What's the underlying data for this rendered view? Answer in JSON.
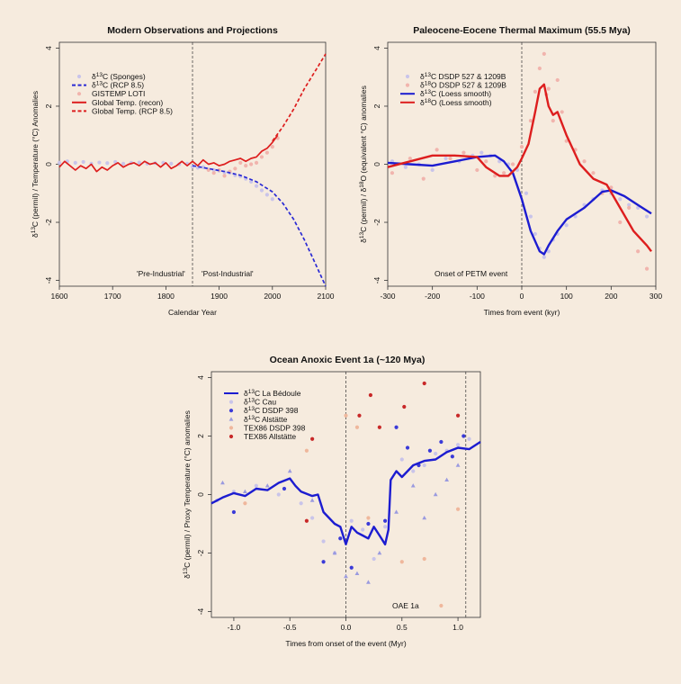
{
  "chart_data": [
    {
      "type": "line",
      "title": "Modern Observations and Projections",
      "xlabel": "Calendar Year",
      "ylabel": "δ13C (permil) / Temperature (°C) Anomalies",
      "xlim": [
        1600,
        2100
      ],
      "ylim": [
        -4.2,
        4.2
      ],
      "xticks": [
        1600,
        1700,
        1800,
        1900,
        2000,
        2100
      ],
      "yticks": [
        -4,
        -2,
        0,
        2,
        4
      ],
      "vline": 1850,
      "annotations": [
        "'Pre-Industrial'",
        "'Post-Industrial'"
      ],
      "legend": [
        "δ13C (Sponges)",
        "δ13C (RCP 8.5)",
        "GISTEMP LOTI",
        "Global Temp. (recon)",
        "Global Temp. (RCP 8.5)"
      ],
      "series": [
        {
          "name": "δ13C (Sponges)",
          "style": "points",
          "color": "#c9c4ea",
          "x": [
            1600,
            1615,
            1630,
            1645,
            1660,
            1675,
            1690,
            1705,
            1720,
            1735,
            1750,
            1765,
            1780,
            1795,
            1810,
            1825,
            1840,
            1850,
            1860,
            1870,
            1880,
            1890,
            1900,
            1910,
            1920,
            1930,
            1940,
            1950,
            1960,
            1970,
            1980,
            1990,
            2000
          ],
          "y": [
            0.05,
            0.1,
            0.05,
            0.08,
            0.02,
            0.06,
            0.04,
            0.08,
            0.02,
            0.05,
            0.06,
            0.02,
            0.04,
            0.05,
            0.02,
            0.0,
            0.02,
            -0.08,
            -0.12,
            -0.1,
            -0.18,
            -0.2,
            -0.22,
            -0.28,
            -0.3,
            -0.38,
            -0.42,
            -0.5,
            -0.6,
            -0.75,
            -0.9,
            -1.05,
            -1.2
          ]
        },
        {
          "name": "δ13C (RCP 8.5)",
          "style": "dashed",
          "color": "#2a2ad4",
          "x": [
            1850,
            1880,
            1910,
            1940,
            1970,
            2000,
            2020,
            2040,
            2060,
            2080,
            2100
          ],
          "y": [
            -0.05,
            -0.15,
            -0.25,
            -0.38,
            -0.6,
            -0.95,
            -1.35,
            -1.9,
            -2.6,
            -3.4,
            -4.2
          ]
        },
        {
          "name": "GISTEMP LOTI",
          "style": "points",
          "color": "#f1b4ad",
          "x": [
            1880,
            1890,
            1900,
            1910,
            1920,
            1930,
            1940,
            1950,
            1960,
            1970,
            1980,
            1990,
            2000,
            2010
          ],
          "y": [
            -0.2,
            -0.3,
            -0.2,
            -0.4,
            -0.25,
            -0.15,
            0.05,
            -0.05,
            0.0,
            0.05,
            0.25,
            0.4,
            0.6,
            0.9
          ]
        },
        {
          "name": "Global Temp. (recon)",
          "style": "solid",
          "color": "#dd1e1e",
          "x": [
            1600,
            1610,
            1620,
            1630,
            1640,
            1650,
            1660,
            1670,
            1680,
            1690,
            1700,
            1710,
            1720,
            1730,
            1740,
            1750,
            1760,
            1770,
            1780,
            1790,
            1800,
            1810,
            1820,
            1830,
            1840,
            1850,
            1860,
            1870,
            1880,
            1890,
            1900,
            1910,
            1920,
            1930,
            1940,
            1950,
            1960,
            1970,
            1980,
            1990,
            2000,
            2010
          ],
          "y": [
            -0.1,
            0.1,
            -0.05,
            -0.2,
            -0.05,
            -0.15,
            0.0,
            -0.25,
            -0.1,
            -0.2,
            -0.05,
            0.05,
            -0.1,
            0.0,
            0.05,
            -0.05,
            0.1,
            0.0,
            0.05,
            -0.1,
            0.05,
            -0.15,
            -0.05,
            0.1,
            -0.05,
            0.1,
            -0.05,
            0.15,
            0.0,
            0.05,
            -0.05,
            0.0,
            0.1,
            0.15,
            0.2,
            0.1,
            0.2,
            0.25,
            0.45,
            0.55,
            0.75,
            1.0
          ]
        },
        {
          "name": "Global Temp. (RCP 8.5)",
          "style": "dashed",
          "color": "#dd1e1e",
          "x": [
            2000,
            2020,
            2040,
            2060,
            2080,
            2100
          ],
          "y": [
            0.8,
            1.3,
            1.9,
            2.6,
            3.2,
            3.8
          ]
        }
      ]
    },
    {
      "type": "line",
      "title": "Paleocene-Eocene Thermal Maximum (55.5 Mya)",
      "xlabel": "Times from event (kyr)",
      "ylabel": "δ13C (permil) / δ18O (equivalent °C) anomalies",
      "xlim": [
        -300,
        300
      ],
      "ylim": [
        -4.2,
        4.2
      ],
      "xticks": [
        -300,
        -200,
        -100,
        0,
        100,
        200,
        300
      ],
      "yticks": [
        -4,
        -2,
        0,
        2,
        4
      ],
      "vline": 0,
      "annotations": [
        "Onset of PETM event"
      ],
      "legend": [
        "δ13C DSDP 527 & 1209B",
        "δ18O DSDP 527 & 1209B",
        "δ13C (Loess smooth)",
        "δ18O (Loess smooth)"
      ],
      "series": [
        {
          "name": "δ13C DSDP 527 & 1209B",
          "style": "points",
          "color": "#c9c4ea",
          "x": [
            -290,
            -260,
            -230,
            -200,
            -170,
            -140,
            -110,
            -90,
            -70,
            -50,
            -30,
            -10,
            10,
            20,
            30,
            40,
            50,
            60,
            70,
            80,
            100,
            120,
            140,
            160,
            180,
            200,
            220,
            240,
            260,
            280
          ],
          "y": [
            0.1,
            -0.1,
            0.0,
            -0.2,
            0.2,
            0.1,
            0.3,
            0.4,
            0.3,
            0.1,
            0.0,
            -0.2,
            -1.0,
            -1.8,
            -2.4,
            -2.9,
            -3.2,
            -3.0,
            -2.6,
            -2.4,
            -2.1,
            -1.8,
            -1.4,
            -1.2,
            -0.9,
            -1.0,
            -1.2,
            -1.4,
            -1.5,
            -1.8
          ]
        },
        {
          "name": "δ18O DSDP 527 & 1209B",
          "style": "points",
          "color": "#f1b4ad",
          "x": [
            -290,
            -250,
            -220,
            -190,
            -160,
            -130,
            -100,
            -80,
            -60,
            -40,
            -20,
            0,
            20,
            30,
            40,
            50,
            55,
            60,
            70,
            80,
            90,
            100,
            120,
            140,
            160,
            180,
            200,
            220,
            240,
            260,
            280
          ],
          "y": [
            -0.3,
            0.2,
            -0.5,
            0.5,
            0.2,
            0.4,
            -0.2,
            0.1,
            -0.4,
            -0.3,
            0.0,
            0.6,
            1.5,
            2.5,
            3.3,
            3.8,
            2.4,
            2.6,
            1.5,
            2.9,
            1.8,
            0.8,
            0.5,
            0.1,
            -0.3,
            -1.0,
            -0.8,
            -2.0,
            -1.5,
            -3.0,
            -3.6
          ]
        },
        {
          "name": "δ13C (Loess smooth)",
          "style": "solid",
          "color": "#1c1cd0",
          "x": [
            -300,
            -250,
            -200,
            -150,
            -100,
            -60,
            -40,
            -20,
            0,
            20,
            40,
            50,
            60,
            80,
            100,
            140,
            180,
            200,
            230,
            260,
            290
          ],
          "y": [
            0.05,
            0.0,
            -0.05,
            0.1,
            0.25,
            0.3,
            0.1,
            -0.3,
            -1.2,
            -2.3,
            -3.0,
            -3.1,
            -2.8,
            -2.3,
            -1.9,
            -1.5,
            -0.95,
            -0.9,
            -1.1,
            -1.4,
            -1.7
          ]
        },
        {
          "name": "δ18O (Loess smooth)",
          "style": "solid",
          "color": "#dd1e1e",
          "x": [
            -300,
            -250,
            -200,
            -150,
            -100,
            -80,
            -50,
            -30,
            -10,
            0,
            15,
            30,
            40,
            50,
            60,
            70,
            80,
            100,
            130,
            160,
            190,
            220,
            250,
            280,
            290
          ],
          "y": [
            -0.1,
            0.1,
            0.3,
            0.3,
            0.25,
            -0.1,
            -0.4,
            -0.4,
            -0.1,
            0.2,
            0.7,
            1.8,
            2.6,
            2.75,
            2.0,
            1.7,
            1.8,
            1.0,
            0.0,
            -0.5,
            -0.7,
            -1.5,
            -2.3,
            -2.8,
            -3.0
          ]
        }
      ]
    },
    {
      "type": "line",
      "title": "Ocean Anoxic Event 1a (~120 Mya)",
      "xlabel": "Times from onset of the event (Myr)",
      "ylabel": "δ13C (permil) / Proxy Temperature (°C) anomalies",
      "xlim": [
        -1.2,
        1.2
      ],
      "ylim": [
        -4.2,
        4.2
      ],
      "xticks": [
        -1.0,
        -0.5,
        0.0,
        0.5,
        1.0
      ],
      "yticks": [
        -4,
        -2,
        0,
        2,
        4
      ],
      "vlines": [
        0.0,
        1.07
      ],
      "annotations": [
        "OAE 1a"
      ],
      "legend": [
        "δ13C La Bédoule",
        "δ13C Cau",
        "δ13C DSDP 398",
        "δ13C Alstätte",
        "TEX86 DSDP 398",
        "TEX86 Allstätte"
      ],
      "series": [
        {
          "name": "δ13C La Bédoule",
          "style": "solid",
          "color": "#1c1cd0",
          "x": [
            -1.2,
            -1.1,
            -1.0,
            -0.9,
            -0.8,
            -0.7,
            -0.6,
            -0.5,
            -0.45,
            -0.4,
            -0.3,
            -0.25,
            -0.2,
            -0.15,
            -0.1,
            -0.05,
            0.0,
            0.05,
            0.1,
            0.15,
            0.2,
            0.25,
            0.3,
            0.35,
            0.38,
            0.4,
            0.45,
            0.5,
            0.6,
            0.7,
            0.8,
            0.9,
            1.0,
            1.1,
            1.2
          ],
          "y": [
            -0.3,
            -0.1,
            0.05,
            -0.05,
            0.2,
            0.15,
            0.4,
            0.55,
            0.3,
            0.1,
            -0.05,
            0.0,
            -0.6,
            -0.8,
            -1.0,
            -1.1,
            -1.7,
            -1.1,
            -1.3,
            -1.4,
            -1.5,
            -1.1,
            -1.4,
            -1.7,
            -1.2,
            0.5,
            0.8,
            0.6,
            1.0,
            1.15,
            1.2,
            1.45,
            1.6,
            1.55,
            1.8
          ]
        },
        {
          "name": "δ13C Cau",
          "style": "points",
          "color": "#c9c4ea",
          "x": [
            -1.15,
            -1.0,
            -0.8,
            -0.6,
            -0.4,
            -0.3,
            -0.2,
            -0.1,
            0.05,
            0.15,
            0.25,
            0.35,
            0.5,
            0.6,
            0.7,
            0.8,
            0.9,
            1.0,
            1.1
          ],
          "y": [
            -0.2,
            0.1,
            0.3,
            0.0,
            -0.3,
            -0.8,
            -1.6,
            -2.0,
            -0.9,
            -1.2,
            -2.2,
            -1.1,
            1.2,
            0.8,
            1.0,
            1.4,
            1.5,
            1.7,
            1.9
          ]
        },
        {
          "name": "δ13C DSDP 398",
          "style": "points",
          "color": "#3a3ad8",
          "x": [
            -1.0,
            -0.55,
            -0.2,
            -0.05,
            0.05,
            0.2,
            0.35,
            0.45,
            0.55,
            0.65,
            0.75,
            0.85,
            0.95,
            1.05
          ],
          "y": [
            -0.6,
            0.2,
            -2.3,
            -1.5,
            -2.5,
            -1.0,
            -0.9,
            2.3,
            1.6,
            1.0,
            1.5,
            1.8,
            1.3,
            2.0
          ]
        },
        {
          "name": "δ13C Alstätte",
          "style": "points",
          "color": "#9a9adf",
          "x": [
            -1.1,
            -0.9,
            -0.7,
            -0.5,
            -0.3,
            -0.1,
            0.0,
            0.1,
            0.2,
            0.3,
            0.45,
            0.6,
            0.7,
            0.8,
            0.9,
            1.0
          ],
          "y": [
            0.4,
            0.1,
            0.3,
            0.8,
            -0.2,
            -2.0,
            -2.8,
            -2.7,
            -3.0,
            -2.0,
            -0.6,
            0.3,
            -0.8,
            0.0,
            0.5,
            1.0
          ]
        },
        {
          "name": "TEX86 DSDP 398",
          "style": "points",
          "color": "#efb79c",
          "x": [
            -0.9,
            -0.35,
            0.0,
            0.1,
            0.2,
            0.5,
            0.7,
            0.85,
            1.0
          ],
          "y": [
            -0.3,
            1.5,
            2.7,
            2.3,
            -0.8,
            -2.3,
            -2.2,
            -3.8,
            -0.5
          ]
        },
        {
          "name": "TEX86 Allstätte",
          "style": "points",
          "color": "#c82828",
          "x": [
            -0.35,
            -0.3,
            0.12,
            0.22,
            0.3,
            0.52,
            0.7,
            1.0
          ],
          "y": [
            -0.9,
            1.9,
            2.7,
            3.4,
            2.3,
            3.0,
            3.8,
            2.7
          ]
        }
      ]
    }
  ]
}
